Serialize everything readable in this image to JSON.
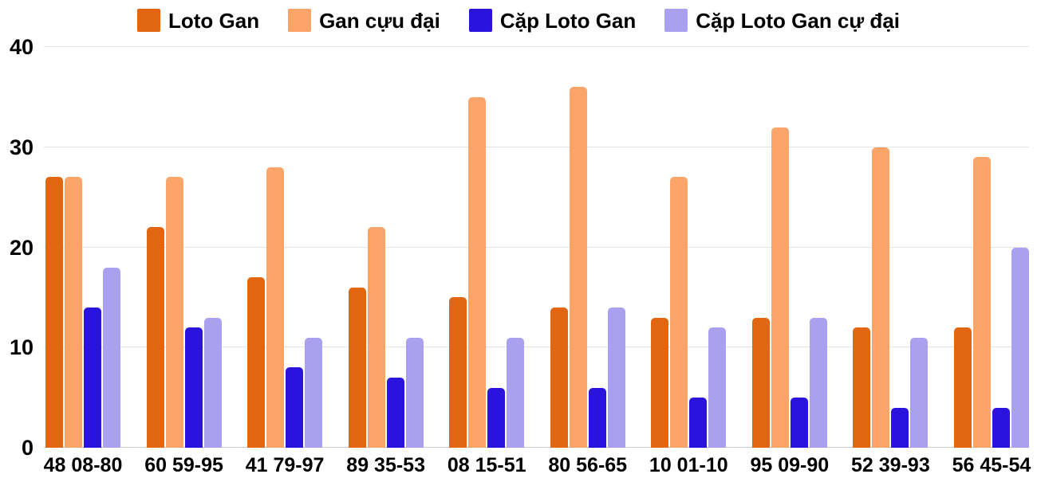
{
  "chart": {
    "background_color": "#ffffff",
    "text_color": "#000000",
    "gridline_color": "#e4e4e4",
    "baseline_color": "#cfcfcf"
  },
  "chart_data": {
    "type": "bar",
    "legend_position": "top",
    "grid": true,
    "ylim": [
      0,
      40
    ],
    "yticks": [
      0,
      10,
      20,
      30,
      40
    ],
    "categories": [
      "48 08-80",
      "60 59-95",
      "41 79-97",
      "89 35-53",
      "08 15-51",
      "80 56-65",
      "10 01-10",
      "95 09-90",
      "52 39-93",
      "56 45-54"
    ],
    "series": [
      {
        "name": "Loto Gan",
        "color": "#e2650f",
        "values": [
          27,
          22,
          17,
          16,
          15,
          14,
          13,
          13,
          12,
          12
        ]
      },
      {
        "name": "Gan cựu đại",
        "color": "#fba469",
        "values": [
          27,
          27,
          28,
          22,
          35,
          36,
          27,
          32,
          30,
          29
        ]
      },
      {
        "name": "Cặp Loto Gan",
        "color": "#2b13de",
        "values": [
          14,
          12,
          8,
          7,
          6,
          6,
          5,
          5,
          4,
          4
        ]
      },
      {
        "name": "Cặp Loto Gan cự đại",
        "color": "#a9a1f0",
        "values": [
          18,
          13,
          11,
          11,
          11,
          14,
          12,
          13,
          11,
          20
        ]
      }
    ]
  }
}
